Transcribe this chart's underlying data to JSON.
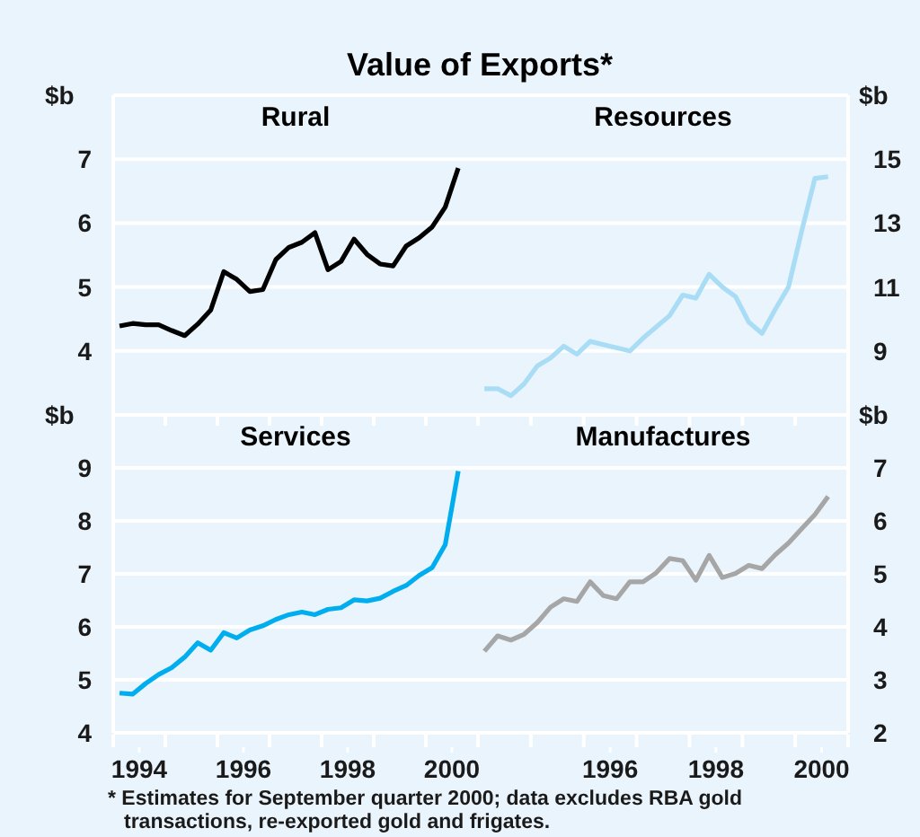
{
  "chart_data": [
    {
      "type": "other",
      "title": "Value of Exports*",
      "annotations": [
        "* Estimates for September quarter 2000; data excludes RBA gold transactions, re-exported gold and frigates."
      ]
    },
    {
      "type": "line",
      "title": "Rural",
      "ylabel": "$b",
      "ylim": [
        3,
        8
      ],
      "yticks": [
        4,
        5,
        6,
        7
      ],
      "xlim": [
        "1994",
        "2001"
      ],
      "xticks": [
        {
          "value": "1994",
          "label": null
        },
        {
          "value": "1995",
          "label": null
        },
        {
          "value": "1996",
          "label": null
        },
        {
          "value": "1997",
          "label": null
        },
        {
          "value": "1998",
          "label": null
        },
        {
          "value": "1999",
          "label": null
        },
        {
          "value": "2000",
          "label": null
        },
        {
          "value": "2001",
          "label": null
        }
      ],
      "tick_labels": "y",
      "grid": "y",
      "marker": "none",
      "x": [
        "1994-02-15",
        "1994-05-15",
        "1994-08-15",
        "1994-11-15",
        "1995-02-15",
        "1995-05-15",
        "1995-08-15",
        "1995-11-15",
        "1996-02-15",
        "1996-05-15",
        "1996-08-15",
        "1996-11-15",
        "1997-02-15",
        "1997-05-15",
        "1997-08-15",
        "1997-11-15",
        "1998-02-15",
        "1998-05-15",
        "1998-08-15",
        "1998-11-15",
        "1999-02-15",
        "1999-05-15",
        "1999-08-15",
        "1999-11-15",
        "2000-02-15",
        "2000-05-15",
        "2000-08-15"
      ],
      "series": [
        {
          "color": "#000000",
          "values": [
            4.39,
            4.43,
            4.41,
            4.41,
            4.32,
            4.24,
            4.42,
            4.64,
            5.24,
            5.12,
            4.93,
            4.96,
            5.43,
            5.62,
            5.7,
            5.85,
            5.27,
            5.4,
            5.75,
            5.51,
            5.36,
            5.33,
            5.64,
            5.77,
            5.94,
            6.25,
            6.86
          ]
        }
      ]
    },
    {
      "type": "line",
      "title": "Resources",
      "ylabel": "$b",
      "ylim": [
        7,
        17
      ],
      "yticks": [
        9,
        11,
        13,
        15
      ],
      "xlim": [
        "1994",
        "2001"
      ],
      "xticks": [
        {
          "value": "1994",
          "label": null
        },
        {
          "value": "1995",
          "label": null
        },
        {
          "value": "1996",
          "label": null
        },
        {
          "value": "1997",
          "label": null
        },
        {
          "value": "1998",
          "label": null
        },
        {
          "value": "1999",
          "label": null
        },
        {
          "value": "2000",
          "label": null
        },
        {
          "value": "2001",
          "label": null
        }
      ],
      "tick_labels": "y",
      "grid": "y",
      "marker": "none",
      "x": [
        "1994-02-15",
        "1994-05-15",
        "1994-08-15",
        "1994-11-15",
        "1995-02-15",
        "1995-05-15",
        "1995-08-15",
        "1995-11-15",
        "1996-02-15",
        "1996-05-15",
        "1996-08-15",
        "1996-11-15",
        "1997-02-15",
        "1997-05-15",
        "1997-08-15",
        "1997-11-15",
        "1998-02-15",
        "1998-05-15",
        "1998-08-15",
        "1998-11-15",
        "1999-02-15",
        "1999-05-15",
        "1999-08-15",
        "1999-11-15",
        "2000-02-15",
        "2000-05-15",
        "2000-08-15"
      ],
      "series": [
        {
          "color": "#a9dcf5",
          "values": [
            7.82,
            7.82,
            7.6,
            7.97,
            8.53,
            8.78,
            9.15,
            8.9,
            9.3,
            9.2,
            9.1,
            9.0,
            9.4,
            9.75,
            10.1,
            10.75,
            10.65,
            11.4,
            11.0,
            10.7,
            9.9,
            9.55,
            10.3,
            11.0,
            12.75,
            14.4,
            14.45
          ]
        }
      ]
    },
    {
      "type": "line",
      "title": "Services",
      "ylabel": "$b",
      "ylim": [
        4,
        10
      ],
      "yticks": [
        4,
        5,
        6,
        7,
        8,
        9
      ],
      "xlim": [
        "1994",
        "2001"
      ],
      "xticks": [
        {
          "value": "1994",
          "label": null
        },
        {
          "value": "1994-07",
          "label": "1994"
        },
        {
          "value": "1995",
          "label": null
        },
        {
          "value": "1996",
          "label": null
        },
        {
          "value": "1996-07",
          "label": "1996"
        },
        {
          "value": "1997",
          "label": null
        },
        {
          "value": "1998",
          "label": null
        },
        {
          "value": "1998-07",
          "label": "1998"
        },
        {
          "value": "1999",
          "label": null
        },
        {
          "value": "2000",
          "label": null
        },
        {
          "value": "2000-07",
          "label": "2000"
        },
        {
          "value": "2001",
          "label": null
        }
      ],
      "grid": "y",
      "marker": "none",
      "x": [
        "1994-02-15",
        "1994-05-15",
        "1994-08-15",
        "1994-11-15",
        "1995-02-15",
        "1995-05-15",
        "1995-08-15",
        "1995-11-15",
        "1996-02-15",
        "1996-05-15",
        "1996-08-15",
        "1996-11-15",
        "1997-02-15",
        "1997-05-15",
        "1997-08-15",
        "1997-11-15",
        "1998-02-15",
        "1998-05-15",
        "1998-08-15",
        "1998-11-15",
        "1999-02-15",
        "1999-05-15",
        "1999-08-15",
        "1999-11-15",
        "2000-02-15",
        "2000-05-15",
        "2000-08-15"
      ],
      "series": [
        {
          "color": "#00aeef",
          "values": [
            4.75,
            4.73,
            4.93,
            5.1,
            5.23,
            5.43,
            5.7,
            5.56,
            5.89,
            5.79,
            5.94,
            6.02,
            6.14,
            6.23,
            6.28,
            6.23,
            6.33,
            6.36,
            6.51,
            6.49,
            6.54,
            6.67,
            6.78,
            6.97,
            7.12,
            7.55,
            8.94
          ]
        }
      ]
    },
    {
      "type": "line",
      "title": "Manufactures",
      "ylabel": "$b",
      "ylim": [
        2,
        8
      ],
      "yticks": [
        2,
        3,
        4,
        5,
        6,
        7
      ],
      "xlim": [
        "1994",
        "2001"
      ],
      "xticks": [
        {
          "value": "1994",
          "label": null
        },
        {
          "value": "1995",
          "label": null
        },
        {
          "value": "1996",
          "label": null
        },
        {
          "value": "1996-07",
          "label": "1996"
        },
        {
          "value": "1997",
          "label": null
        },
        {
          "value": "1998",
          "label": null
        },
        {
          "value": "1998-07",
          "label": "1998"
        },
        {
          "value": "1999",
          "label": null
        },
        {
          "value": "2000",
          "label": null
        },
        {
          "value": "2000-07",
          "label": "2000"
        },
        {
          "value": "2001",
          "label": null
        }
      ],
      "grid": "y",
      "marker": "none",
      "x": [
        "1994-02-15",
        "1994-05-15",
        "1994-08-15",
        "1994-11-15",
        "1995-02-15",
        "1995-05-15",
        "1995-08-15",
        "1995-11-15",
        "1996-02-15",
        "1996-05-15",
        "1996-08-15",
        "1996-11-15",
        "1997-02-15",
        "1997-05-15",
        "1997-08-15",
        "1997-11-15",
        "1998-02-15",
        "1998-05-15",
        "1998-08-15",
        "1998-11-15",
        "1999-02-15",
        "1999-05-15",
        "1999-08-15",
        "1999-11-15",
        "2000-02-15",
        "2000-05-15",
        "2000-08-15"
      ],
      "series": [
        {
          "color": "#a6a6a6",
          "values": [
            3.54,
            3.83,
            3.75,
            3.86,
            4.08,
            4.37,
            4.53,
            4.48,
            4.85,
            4.59,
            4.53,
            4.85,
            4.85,
            5.02,
            5.29,
            5.25,
            4.88,
            5.35,
            4.93,
            5.01,
            5.16,
            5.1,
            5.36,
            5.58,
            5.85,
            6.12,
            6.46
          ]
        }
      ]
    }
  ]
}
